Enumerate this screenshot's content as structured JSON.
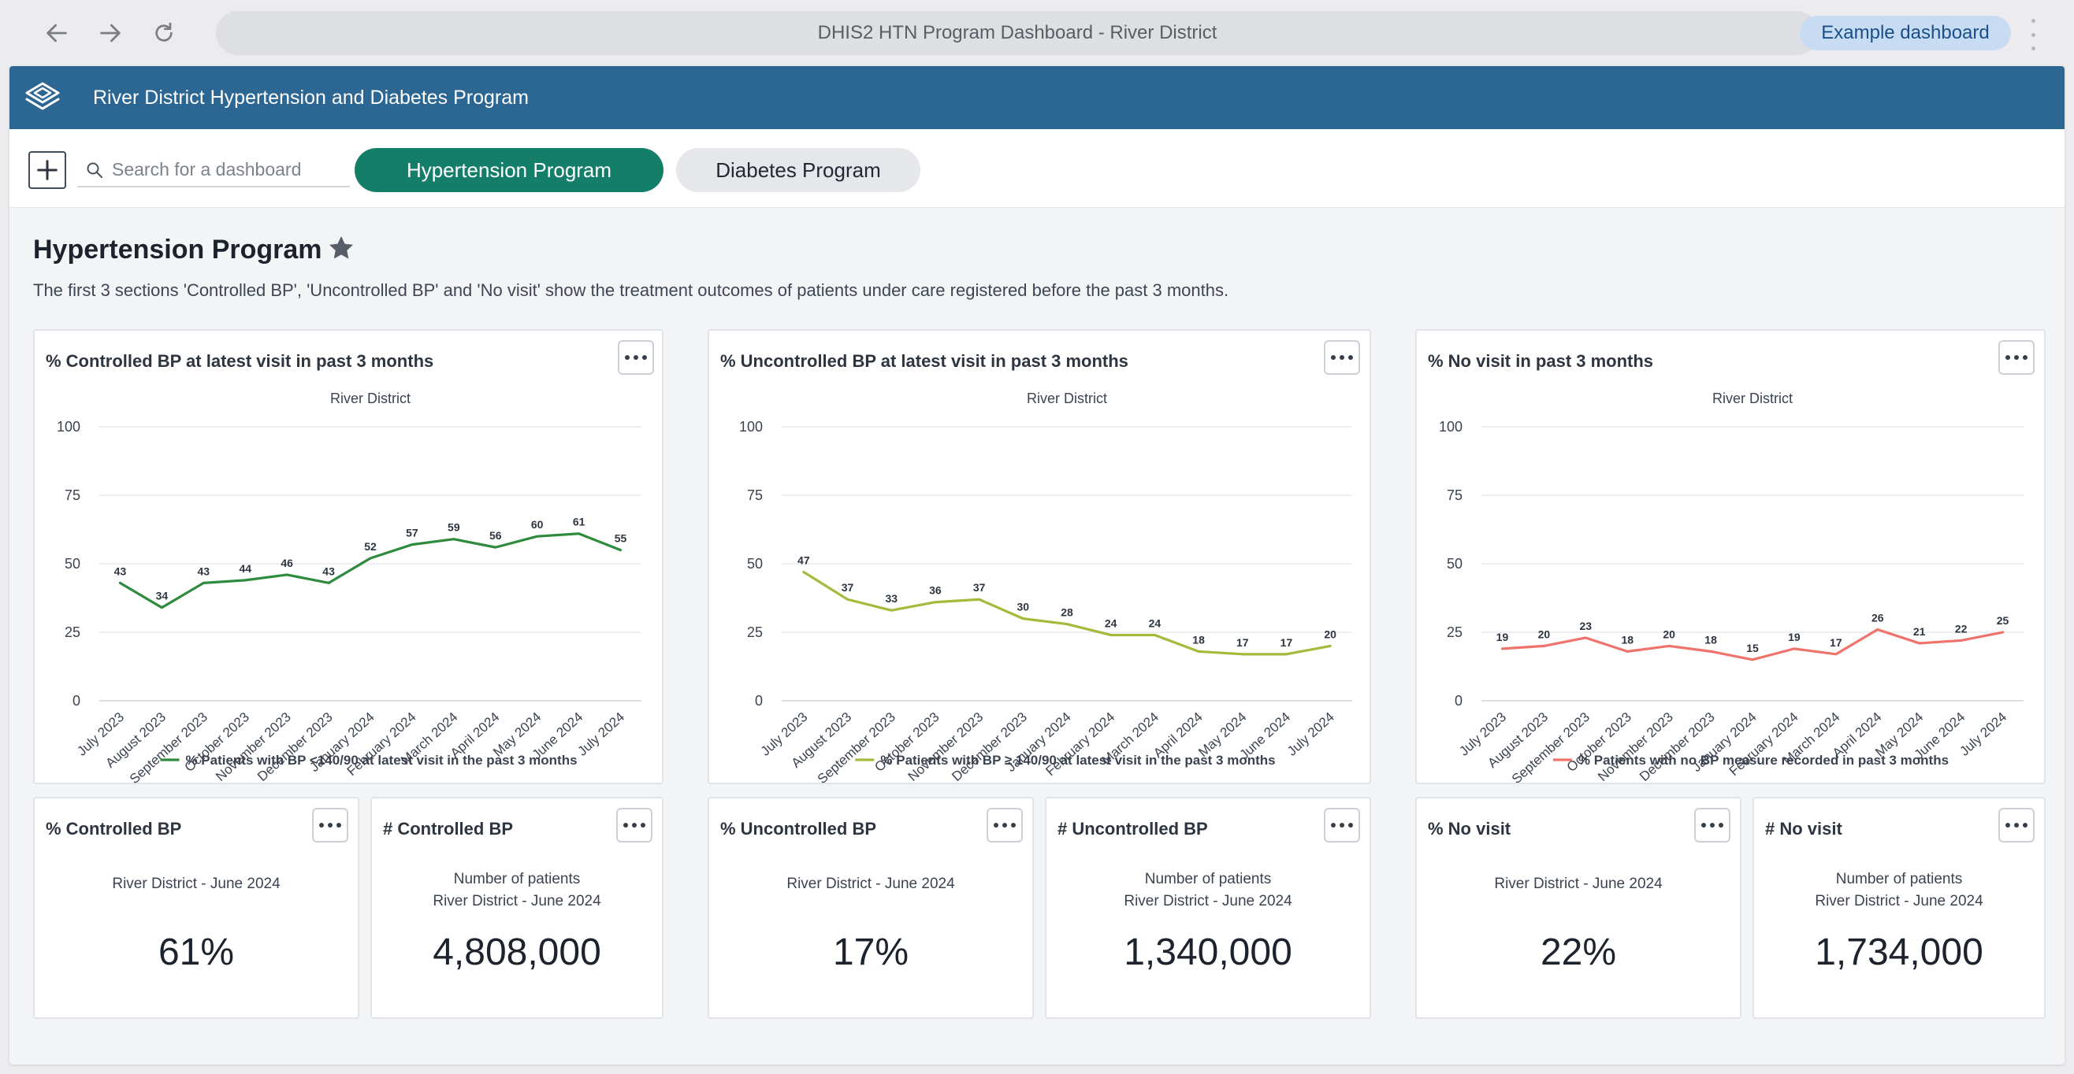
{
  "browser": {
    "url_title": "DHIS2 HTN Program Dashboard - River District",
    "example_button": "Example dashboard"
  },
  "app": {
    "title": "River District Hypertension and Diabetes Program",
    "search_placeholder": "Search for a dashboard",
    "chips": [
      "Hypertension Program",
      "Diabetes Program"
    ]
  },
  "dashboard": {
    "title": "Hypertension Program",
    "description": "The first 3 sections 'Controlled BP', 'Uncontrolled BP' and 'No visit' show the treatment outcomes of patients under care registered before the past 3 months."
  },
  "chart_data": [
    {
      "type": "line",
      "title": "% Controlled BP at latest visit in past 3 months",
      "subtitle": "River District",
      "categories": [
        "July 2023",
        "August 2023",
        "September 2023",
        "October 2023",
        "November 2023",
        "December 2023",
        "January 2024",
        "February 2024",
        "March 2024",
        "April 2024",
        "May 2024",
        "June 2024",
        "July 2024"
      ],
      "series": [
        {
          "name": "% Patients with BP <140/90 at latest visit in the past 3 months",
          "values": [
            43,
            34,
            43,
            44,
            46,
            43,
            52,
            57,
            59,
            56,
            60,
            61,
            55
          ],
          "color": "#2e8b3d"
        }
      ],
      "yticks": [
        "100",
        "75",
        "50",
        "25",
        "0"
      ],
      "ylim": [
        0,
        100
      ]
    },
    {
      "type": "line",
      "title": "% Uncontrolled BP at latest visit in past 3 months",
      "subtitle": "River District",
      "categories": [
        "July 2023",
        "August 2023",
        "September 2023",
        "October 2023",
        "November 2023",
        "December 2023",
        "January 2024",
        "February 2024",
        "March 2024",
        "April 2024",
        "May 2024",
        "June 2024",
        "July 2024"
      ],
      "series": [
        {
          "name": "% Patients with BP ≥ 140/90 at latest visit in the past 3 months",
          "values": [
            47,
            37,
            33,
            36,
            37,
            30,
            28,
            24,
            24,
            18,
            17,
            17,
            20
          ],
          "color": "#a5b93a"
        }
      ],
      "yticks": [
        "100",
        "75",
        "50",
        "25",
        "0"
      ],
      "ylim": [
        0,
        100
      ]
    },
    {
      "type": "line",
      "title": "% No visit in past 3 months",
      "subtitle": "River District",
      "categories": [
        "July 2023",
        "August 2023",
        "September 2023",
        "October 2023",
        "November 2023",
        "December 2023",
        "January 2024",
        "February 2024",
        "March 2024",
        "April 2024",
        "May 2024",
        "June 2024",
        "July 2024"
      ],
      "series": [
        {
          "name": "% Patients with no BP measure recorded in past 3 months",
          "values": [
            19,
            20,
            23,
            18,
            20,
            18,
            15,
            19,
            17,
            26,
            21,
            22,
            25
          ],
          "color": "#f0736b"
        }
      ],
      "yticks": [
        "100",
        "75",
        "50",
        "25",
        "0"
      ],
      "ylim": [
        0,
        100
      ]
    }
  ],
  "single_values": [
    {
      "title": "% Controlled BP",
      "line1": "",
      "line2": "River District - June 2024",
      "value": "61%"
    },
    {
      "title": "# Controlled BP",
      "line1": "Number of patients",
      "line2": "River District - June 2024",
      "value": "4,808,000"
    },
    {
      "title": "% Uncontrolled BP",
      "line1": "",
      "line2": "River District - June 2024",
      "value": "17%"
    },
    {
      "title": "# Uncontrolled BP",
      "line1": "Number of patients",
      "line2": "River District - June 2024",
      "value": "1,340,000"
    },
    {
      "title": "% No visit",
      "line1": "",
      "line2": "River District - June 2024",
      "value": "22%"
    },
    {
      "title": "# No visit",
      "line1": "Number of patients",
      "line2": "River District - June 2024",
      "value": "1,734,000"
    }
  ]
}
